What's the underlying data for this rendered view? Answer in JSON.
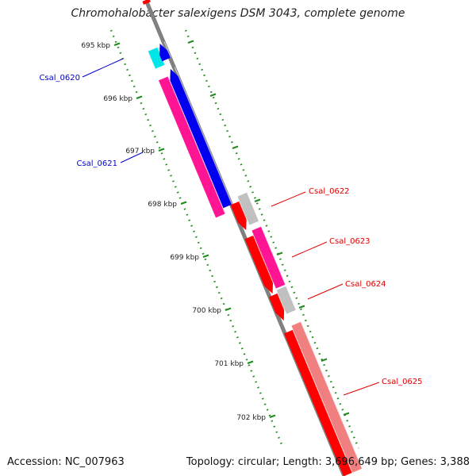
{
  "title": "Chromohalobacter salexigens DSM 3043, complete genome",
  "footer": {
    "accession": "Accession: NC_007963",
    "summary": "Topology: circular; Length: 3,696,649 bp; Genes: 3,388"
  },
  "ticks": [
    {
      "label": "695 kbp",
      "kbp": 695
    },
    {
      "label": "696 kbp",
      "kbp": 696
    },
    {
      "label": "697 kbp",
      "kbp": 697
    },
    {
      "label": "698 kbp",
      "kbp": 698
    },
    {
      "label": "699 kbp",
      "kbp": 699
    },
    {
      "label": "700 kbp",
      "kbp": 700
    },
    {
      "label": "701 kbp",
      "kbp": 701
    },
    {
      "label": "702 kbp",
      "kbp": 702
    }
  ],
  "genes": [
    {
      "label": "Csal_0620",
      "color": "#0000cc"
    },
    {
      "label": "Csal_0621",
      "color": "#0000cc"
    },
    {
      "label": "Csal_0622",
      "color": "#dd0000"
    },
    {
      "label": "Csal_0623",
      "color": "#dd0000"
    },
    {
      "label": "Csal_0624",
      "color": "#dd0000"
    },
    {
      "label": "Csal_0625",
      "color": "#dd0000"
    }
  ],
  "colors": {
    "backbone": "#808080",
    "tick": "#228b22",
    "cds_forward": "#0000ee",
    "cds_reverse": "#ff0000",
    "rrna": "#00e5e5",
    "pink": "#ff1493",
    "light_pink": "#f08080",
    "gray": "#c0c0c0"
  }
}
